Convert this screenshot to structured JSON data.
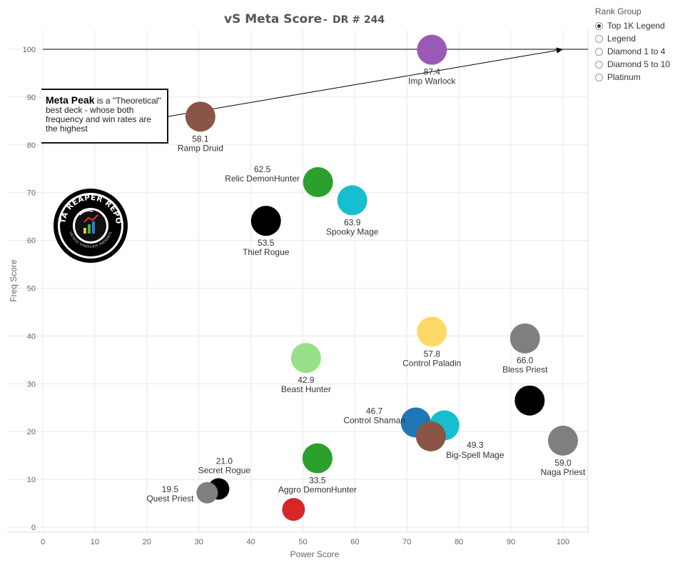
{
  "chart_data": {
    "type": "scatter",
    "title": "vS Meta Score",
    "subtitle": "DR # 244",
    "xlabel": "Power Score",
    "ylabel": "Freq Score",
    "xlim": [
      0,
      105
    ],
    "ylim": [
      -1,
      105
    ],
    "xticks": [
      0,
      10,
      20,
      30,
      40,
      50,
      60,
      70,
      80,
      90,
      100
    ],
    "yticks": [
      0,
      10,
      20,
      30,
      40,
      50,
      60,
      70,
      80,
      90,
      100
    ],
    "grid": true,
    "reference_line": {
      "y": 100
    },
    "annotation": {
      "strong": "Meta Peak",
      "text": "is a \"Theoretical\" best deck - whose both frequency and win rates are the highest",
      "arrow_to": {
        "x": 100,
        "y": 100
      }
    },
    "points": [
      {
        "name": "Imp Warlock",
        "score": "87.4",
        "x": 74.8,
        "y": 99.9,
        "color": "#9b59b6",
        "label_pos": "below"
      },
      {
        "name": "Ramp Druid",
        "score": "58.1",
        "x": 30.3,
        "y": 85.9,
        "color": "#8a5447",
        "label_pos": "below"
      },
      {
        "name": "Relic DemonHunter",
        "score": "62.5",
        "x": 52.9,
        "y": 72.2,
        "color": "#2ca02c",
        "label_pos": "left"
      },
      {
        "name": "Spooky Mage",
        "score": "63.9",
        "x": 59.5,
        "y": 68.4,
        "color": "#17becf",
        "label_pos": "below"
      },
      {
        "name": "Thief Rogue",
        "score": "53.5",
        "x": 42.9,
        "y": 64.1,
        "color": "#000000",
        "label_pos": "below"
      },
      {
        "name": "Control Paladin",
        "score": "57.8",
        "x": 74.8,
        "y": 40.9,
        "color": "#ffd966",
        "label_pos": "below"
      },
      {
        "name": "Bless Priest",
        "score": "66.0",
        "x": 92.7,
        "y": 39.5,
        "color": "#7f7f7f",
        "label_pos": "below"
      },
      {
        "name": "Beast Hunter",
        "score": "42.9",
        "x": 50.6,
        "y": 35.4,
        "color": "#98df8a",
        "label_pos": "below"
      },
      {
        "name": "",
        "score": "",
        "x": 93.6,
        "y": 26.5,
        "color": "#000000",
        "label_pos": "none"
      },
      {
        "name": "Control Shaman",
        "score": "46.7",
        "x": 71.7,
        "y": 21.9,
        "color": "#1f77b4",
        "label_pos": "left"
      },
      {
        "name": "",
        "score": "",
        "x": 77.2,
        "y": 21.3,
        "color": "#17becf",
        "label_pos": "none"
      },
      {
        "name": "Big-Spell Mage",
        "score": "49.3",
        "x": 74.6,
        "y": 19.0,
        "color": "#8a5447",
        "label_pos": "below-right"
      },
      {
        "name": "Naga Priest",
        "score": "59.0",
        "x": 100.0,
        "y": 18.1,
        "color": "#7f7f7f",
        "label_pos": "below"
      },
      {
        "name": "Aggro DemonHunter",
        "score": "33.5",
        "x": 52.8,
        "y": 14.4,
        "color": "#2ca02c",
        "label_pos": "below"
      },
      {
        "name": "Secret Rogue",
        "score": "21.0",
        "x": 33.8,
        "y": 8.0,
        "color": "#000000",
        "label_pos": "above"
      },
      {
        "name": "Quest Priest",
        "score": "19.5",
        "x": 31.6,
        "y": 7.2,
        "color": "#7f7f7f",
        "label_pos": "left"
      },
      {
        "name": "",
        "score": "",
        "x": 48.2,
        "y": 3.7,
        "color": "#d62728",
        "label_pos": "none"
      }
    ]
  },
  "legend": {
    "title": "Rank Group",
    "options": [
      "Top 1K Legend",
      "Legend",
      "Diamond 1 to 4",
      "Diamond 5 to 10",
      "Platinum"
    ],
    "selected": "Top 1K Legend"
  },
  "logo": {
    "icon": "data-reaper-report-logo",
    "text_top": "DATA REAPER REPORT",
    "text_bottom": "VICIOUS SYNDICATE PRESENTS"
  }
}
